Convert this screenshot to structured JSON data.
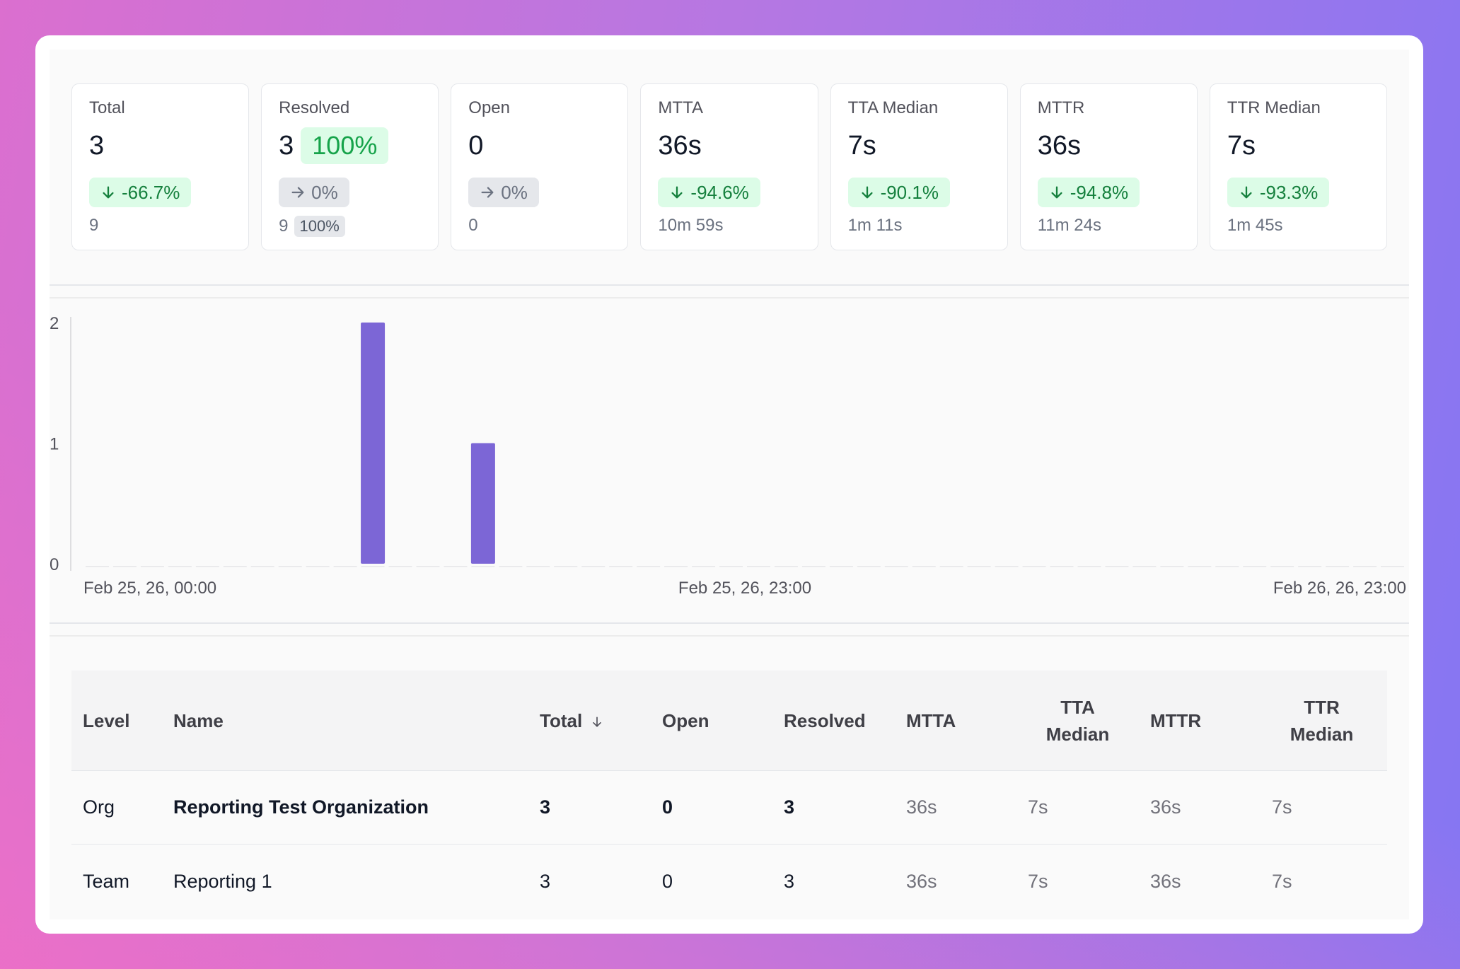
{
  "stats": [
    {
      "label": "Total",
      "value": "3",
      "badge": "-66.7%",
      "badge_kind": "down",
      "prev": "9"
    },
    {
      "label": "Resolved",
      "value": "3",
      "pct": "100%",
      "badge": "0%",
      "badge_kind": "flat",
      "prev": "9",
      "prev_pct": "100%"
    },
    {
      "label": "Open",
      "value": "0",
      "badge": "0%",
      "badge_kind": "flat",
      "prev": "0"
    },
    {
      "label": "MTTA",
      "value": "36s",
      "badge": "-94.6%",
      "badge_kind": "down",
      "prev": "10m 59s"
    },
    {
      "label": "TTA Median",
      "value": "7s",
      "badge": "-90.1%",
      "badge_kind": "down",
      "prev": "1m 11s"
    },
    {
      "label": "MTTR",
      "value": "36s",
      "badge": "-94.8%",
      "badge_kind": "down",
      "prev": "11m 24s"
    },
    {
      "label": "TTR Median",
      "value": "7s",
      "badge": "-93.3%",
      "badge_kind": "down",
      "prev": "1m 45s"
    }
  ],
  "chart_data": {
    "type": "bar",
    "y_ticks": [
      "0",
      "1",
      "2"
    ],
    "ylim": [
      0,
      2
    ],
    "x_tick_labels": [
      "Feb 25, 26, 00:00",
      "Feb 25, 26, 23:00",
      "Feb 26, 26, 23:00"
    ],
    "bucket_count": 48,
    "values": [
      0,
      0,
      0,
      0,
      0,
      0,
      0,
      0,
      0,
      0,
      2,
      0,
      0,
      0,
      1,
      0,
      0,
      0,
      0,
      0,
      0,
      0,
      0,
      0,
      0,
      0,
      0,
      0,
      0,
      0,
      0,
      0,
      0,
      0,
      0,
      0,
      0,
      0,
      0,
      0,
      0,
      0,
      0,
      0,
      0,
      0,
      0,
      0
    ],
    "bar_color": "#7c66d6",
    "grid": false
  },
  "table": {
    "headers": {
      "level": "Level",
      "name": "Name",
      "total": "Total",
      "open": "Open",
      "resolved": "Resolved",
      "mtta": "MTTA",
      "tta_median_1": "TTA",
      "tta_median_2": "Median",
      "mttr": "MTTR",
      "ttr_median_1": "TTR",
      "ttr_median_2": "Median"
    },
    "rows": [
      {
        "level": "Org",
        "name": "Reporting Test Organization",
        "total": "3",
        "open": "0",
        "resolved": "3",
        "mtta": "36s",
        "tta_median": "7s",
        "mttr": "36s",
        "ttr_median": "7s"
      },
      {
        "level": "Team",
        "name": "Reporting 1",
        "total": "3",
        "open": "0",
        "resolved": "3",
        "mtta": "36s",
        "tta_median": "7s",
        "mttr": "36s",
        "ttr_median": "7s"
      }
    ]
  }
}
